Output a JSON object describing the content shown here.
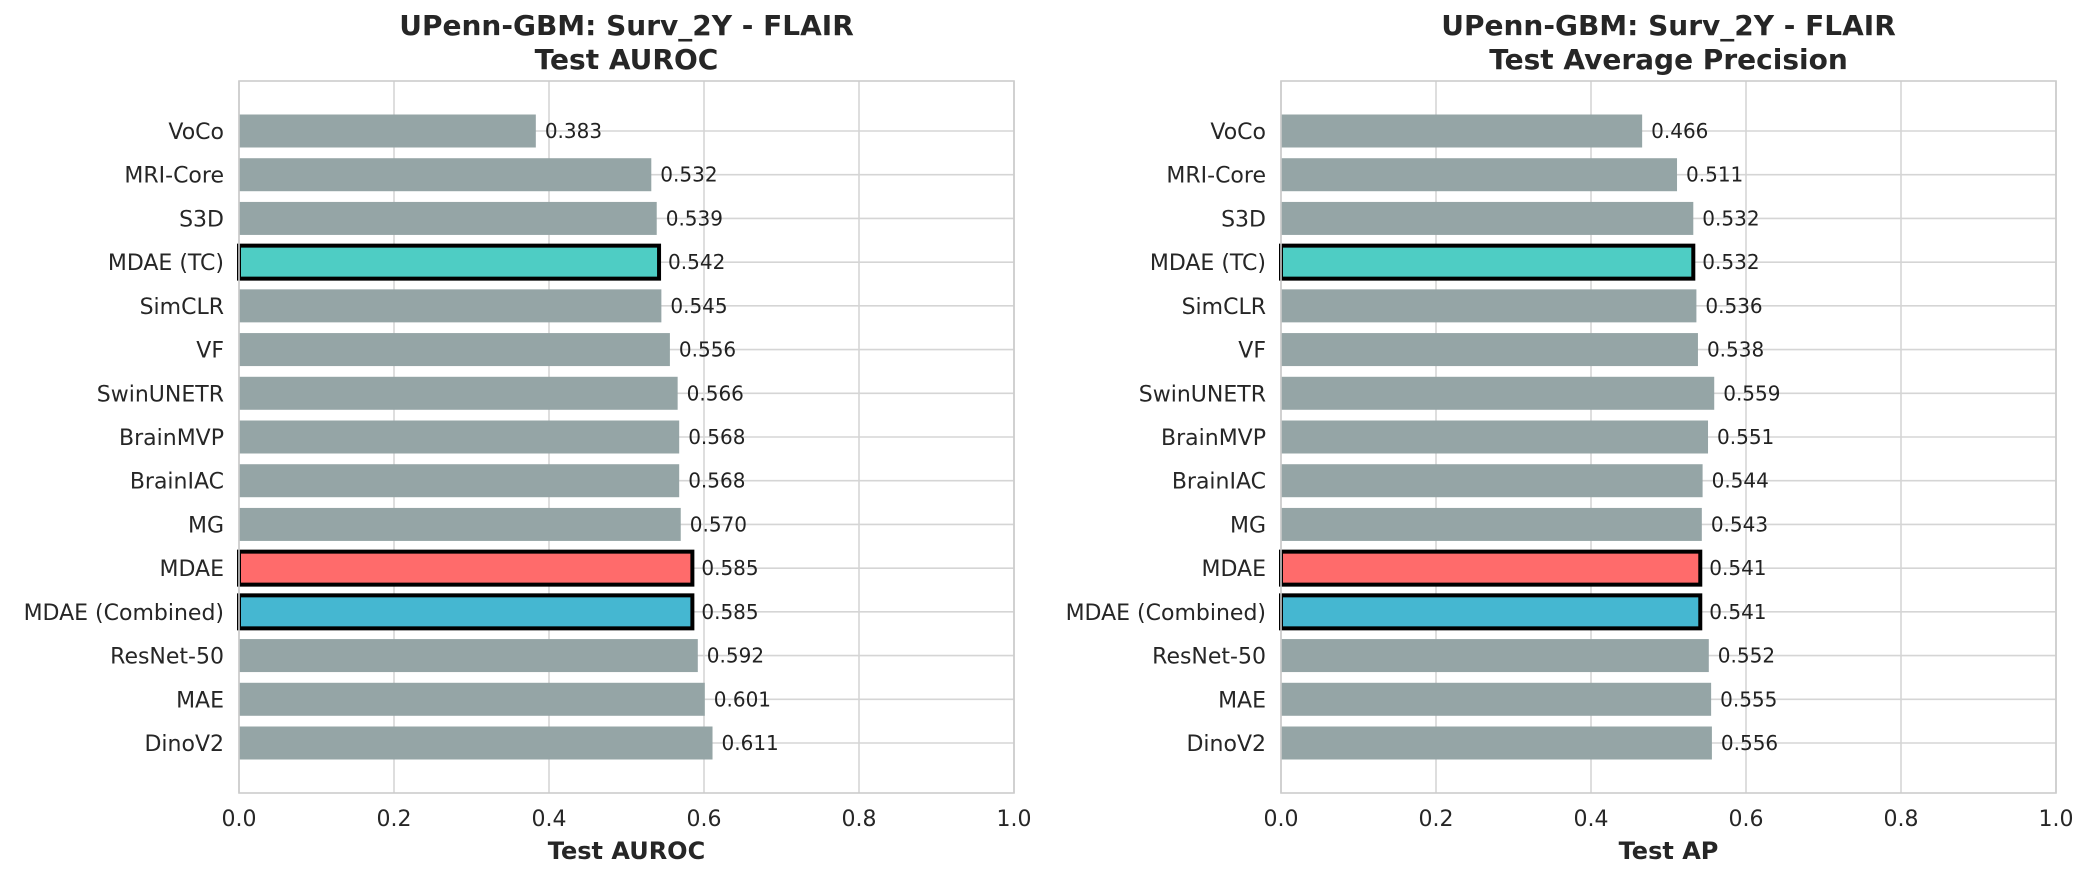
{
  "chart_data": [
    {
      "type": "bar",
      "orientation": "horizontal",
      "title": "UPenn-GBM: Surv_2Y - FLAIR\nTest AUROC",
      "xlabel": "Test AUROC",
      "ylabel": "",
      "xlim": [
        0,
        1
      ],
      "xticks": [
        0.0,
        0.2,
        0.4,
        0.6,
        0.8,
        1.0
      ],
      "xtick_labels": [
        "0.0",
        "0.2",
        "0.4",
        "0.6",
        "0.8",
        "1.0"
      ],
      "grid": true,
      "categories": [
        "VoCo",
        "MRI-Core",
        "S3D",
        "MDAE (TC)",
        "SimCLR",
        "VF",
        "SwinUNETR",
        "BrainMVP",
        "BrainIAC",
        "MG",
        "MDAE",
        "MDAE (Combined)",
        "ResNet-50",
        "MAE",
        "DinoV2"
      ],
      "values": [
        0.383,
        0.532,
        0.539,
        0.542,
        0.545,
        0.556,
        0.566,
        0.568,
        0.568,
        0.57,
        0.585,
        0.585,
        0.592,
        0.601,
        0.611
      ],
      "value_labels": [
        "0.383",
        "0.532",
        "0.539",
        "0.542",
        "0.545",
        "0.556",
        "0.566",
        "0.568",
        "0.568",
        "0.570",
        "0.585",
        "0.585",
        "0.592",
        "0.601",
        "0.611"
      ],
      "colors": [
        "#95a5a6",
        "#95a5a6",
        "#95a5a6",
        "#4ecdc4",
        "#95a5a6",
        "#95a5a6",
        "#95a5a6",
        "#95a5a6",
        "#95a5a6",
        "#95a5a6",
        "#ff6b6b",
        "#45b7d1",
        "#95a5a6",
        "#95a5a6",
        "#95a5a6"
      ],
      "highlighted": [
        false,
        false,
        false,
        true,
        false,
        false,
        false,
        false,
        false,
        false,
        true,
        true,
        false,
        false,
        false
      ]
    },
    {
      "type": "bar",
      "orientation": "horizontal",
      "title": "UPenn-GBM: Surv_2Y - FLAIR\nTest Average Precision",
      "xlabel": "Test AP",
      "ylabel": "",
      "xlim": [
        0,
        1
      ],
      "xticks": [
        0.0,
        0.2,
        0.4,
        0.6,
        0.8,
        1.0
      ],
      "xtick_labels": [
        "0.0",
        "0.2",
        "0.4",
        "0.6",
        "0.8",
        "1.0"
      ],
      "grid": true,
      "categories": [
        "VoCo",
        "MRI-Core",
        "S3D",
        "MDAE (TC)",
        "SimCLR",
        "VF",
        "SwinUNETR",
        "BrainMVP",
        "BrainIAC",
        "MG",
        "MDAE",
        "MDAE (Combined)",
        "ResNet-50",
        "MAE",
        "DinoV2"
      ],
      "values": [
        0.466,
        0.511,
        0.532,
        0.532,
        0.536,
        0.538,
        0.559,
        0.551,
        0.544,
        0.543,
        0.541,
        0.541,
        0.552,
        0.555,
        0.556
      ],
      "value_labels": [
        "0.466",
        "0.511",
        "0.532",
        "0.532",
        "0.536",
        "0.538",
        "0.559",
        "0.551",
        "0.544",
        "0.543",
        "0.541",
        "0.541",
        "0.552",
        "0.555",
        "0.556"
      ],
      "colors": [
        "#95a5a6",
        "#95a5a6",
        "#95a5a6",
        "#4ecdc4",
        "#95a5a6",
        "#95a5a6",
        "#95a5a6",
        "#95a5a6",
        "#95a5a6",
        "#95a5a6",
        "#ff6b6b",
        "#45b7d1",
        "#95a5a6",
        "#95a5a6",
        "#95a5a6"
      ],
      "highlighted": [
        false,
        false,
        false,
        true,
        false,
        false,
        false,
        false,
        false,
        false,
        true,
        true,
        false,
        false,
        false
      ]
    }
  ]
}
